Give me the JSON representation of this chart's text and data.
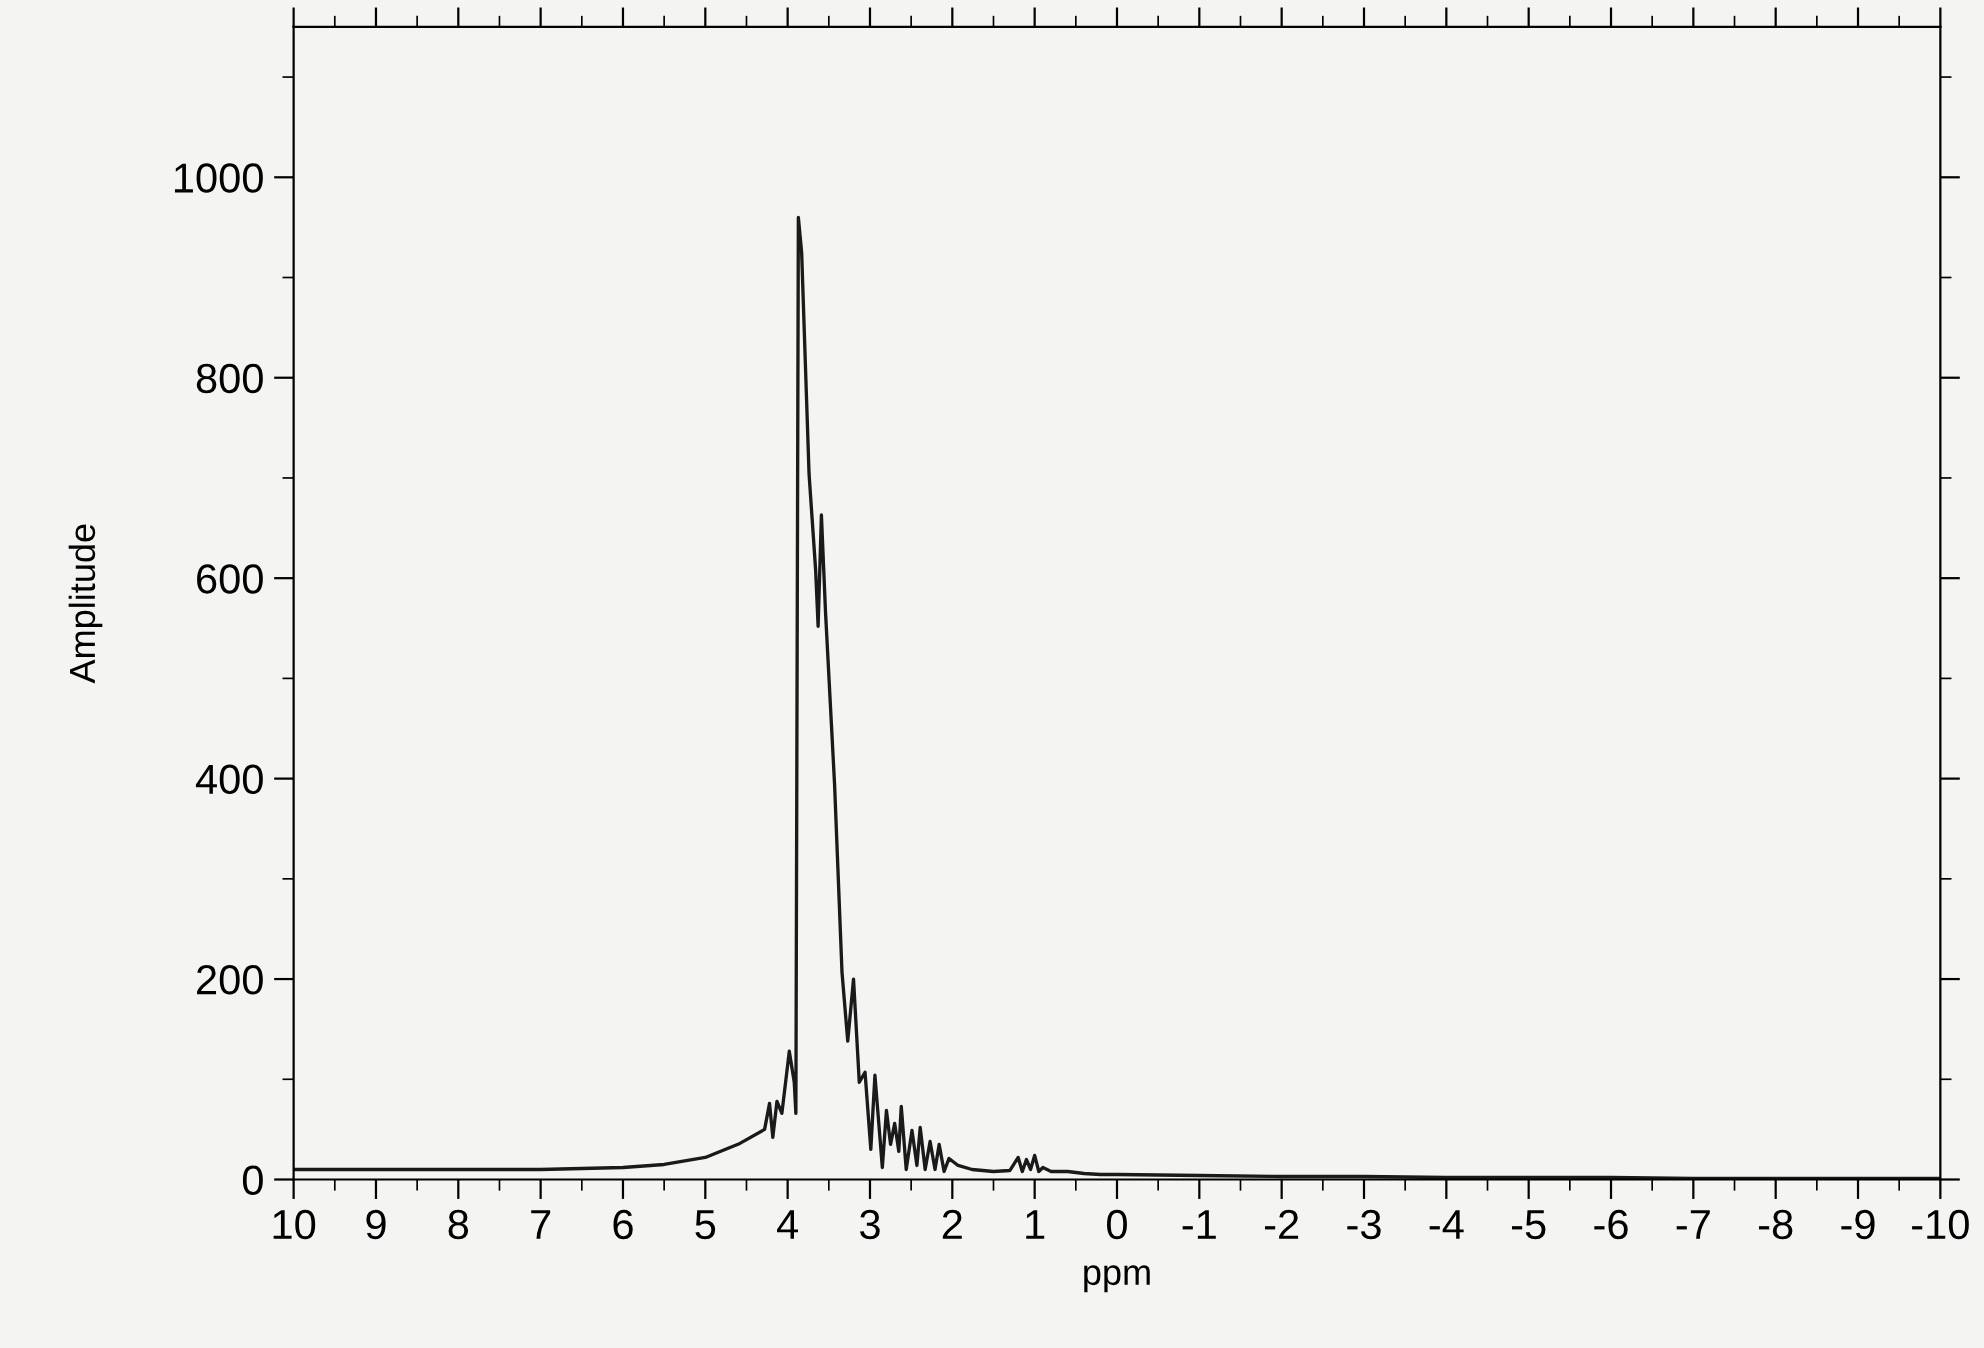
{
  "chart_data": {
    "type": "line",
    "xlabel": "ppm",
    "ylabel": "Amplitude",
    "grid": false,
    "marker": "none",
    "line_style": "solid",
    "xlim": [
      10,
      -10
    ],
    "xticks": [
      10,
      9,
      8,
      7,
      6,
      5,
      4,
      3,
      2,
      1,
      0,
      -1,
      -2,
      -3,
      -4,
      -5,
      -6,
      -7,
      -8,
      -9,
      -10
    ],
    "ylim": [
      0,
      1150
    ],
    "yticks": [
      0,
      200,
      400,
      600,
      800,
      1000
    ],
    "series": [
      {
        "color": "#1a1a1a",
        "x": [
          10,
          9,
          8,
          7,
          6.5,
          6,
          5.5,
          5,
          4.58,
          4.28,
          4.22,
          4.18,
          4.13,
          4.07,
          3.98,
          3.92,
          3.9,
          3.87,
          3.83,
          3.74,
          3.66,
          3.63,
          3.59,
          3.54,
          3.43,
          3.34,
          3.27,
          3.2,
          3.13,
          3.06,
          2.99,
          2.94,
          2.85,
          2.8,
          2.75,
          2.7,
          2.65,
          2.62,
          2.56,
          2.49,
          2.43,
          2.39,
          2.33,
          2.27,
          2.21,
          2.16,
          2.1,
          2.04,
          1.93,
          1.76,
          1.5,
          1.3,
          1.2,
          1.15,
          1.1,
          1.05,
          1.0,
          0.95,
          0.9,
          0.8,
          0.6,
          0.4,
          0.2,
          0,
          -1,
          -2,
          -3,
          -4,
          -5,
          -6,
          -7,
          -8,
          -9,
          -10
        ],
        "values": [
          10,
          10,
          10,
          10,
          11,
          12,
          15,
          22,
          36,
          50,
          76,
          42,
          78,
          66,
          128,
          97,
          66,
          960,
          925,
          704,
          608,
          552,
          663,
          566,
          394,
          207,
          138,
          200,
          97,
          107,
          30,
          104,
          12,
          69,
          35,
          56,
          28,
          73,
          10,
          49,
          14,
          52,
          10,
          38,
          10,
          35,
          8,
          21,
          14,
          10,
          8,
          9,
          22,
          8,
          20,
          10,
          24,
          8,
          12,
          8,
          8,
          6,
          5,
          5,
          4,
          3,
          3,
          2,
          2,
          2,
          1,
          1,
          1,
          1
        ]
      }
    ]
  }
}
